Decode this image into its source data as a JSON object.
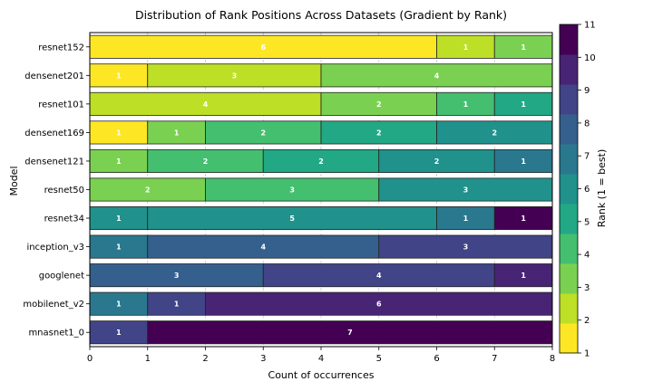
{
  "chart_data": {
    "type": "bar",
    "orientation": "horizontal",
    "stacked": true,
    "title": "Distribution of Rank Positions Across Datasets (Gradient by Rank)",
    "xlabel": "Count of occurrences",
    "ylabel": "Model",
    "xlim": [
      0,
      8
    ],
    "xticks": [
      0,
      1,
      2,
      3,
      4,
      5,
      6,
      7,
      8
    ],
    "grid_x": true,
    "colorbar": {
      "label": "Rank (1 = best)",
      "min": 1,
      "max": 11,
      "ticks": [
        1,
        2,
        3,
        4,
        5,
        6,
        7,
        8,
        9,
        10,
        11
      ],
      "colormap": "viridis_r",
      "levels": 11
    },
    "categories": [
      "resnet152",
      "densenet201",
      "resnet101",
      "densenet169",
      "densenet121",
      "resnet50",
      "resnet34",
      "inception_v3",
      "googlenet",
      "mobilenet_v2",
      "mnasnet1_0"
    ],
    "rows": [
      {
        "model": "resnet152",
        "segments": [
          {
            "rank": 1,
            "count": 6
          },
          {
            "rank": 2,
            "count": 1
          },
          {
            "rank": 3,
            "count": 1
          }
        ]
      },
      {
        "model": "densenet201",
        "segments": [
          {
            "rank": 1,
            "count": 1
          },
          {
            "rank": 2,
            "count": 3
          },
          {
            "rank": 3,
            "count": 4
          }
        ]
      },
      {
        "model": "resnet101",
        "segments": [
          {
            "rank": 2,
            "count": 4
          },
          {
            "rank": 3,
            "count": 2
          },
          {
            "rank": 4,
            "count": 1
          },
          {
            "rank": 5,
            "count": 1
          }
        ]
      },
      {
        "model": "densenet169",
        "segments": [
          {
            "rank": 1,
            "count": 1
          },
          {
            "rank": 3,
            "count": 1
          },
          {
            "rank": 4,
            "count": 2
          },
          {
            "rank": 5,
            "count": 2
          },
          {
            "rank": 6,
            "count": 2
          }
        ]
      },
      {
        "model": "densenet121",
        "segments": [
          {
            "rank": 3,
            "count": 1
          },
          {
            "rank": 4,
            "count": 2
          },
          {
            "rank": 5,
            "count": 2
          },
          {
            "rank": 6,
            "count": 2
          },
          {
            "rank": 7,
            "count": 1
          }
        ]
      },
      {
        "model": "resnet50",
        "segments": [
          {
            "rank": 3,
            "count": 2
          },
          {
            "rank": 4,
            "count": 3
          },
          {
            "rank": 6,
            "count": 3
          }
        ]
      },
      {
        "model": "resnet34",
        "segments": [
          {
            "rank": 6,
            "count": 1
          },
          {
            "rank": 6,
            "count": 5
          },
          {
            "rank": 7,
            "count": 1
          },
          {
            "rank": 11,
            "count": 1
          }
        ]
      },
      {
        "model": "inception_v3",
        "segments": [
          {
            "rank": 7,
            "count": 1
          },
          {
            "rank": 8,
            "count": 4
          },
          {
            "rank": 9,
            "count": 3
          }
        ]
      },
      {
        "model": "googlenet",
        "segments": [
          {
            "rank": 8,
            "count": 3
          },
          {
            "rank": 9,
            "count": 4
          },
          {
            "rank": 10,
            "count": 1
          }
        ]
      },
      {
        "model": "mobilenet_v2",
        "segments": [
          {
            "rank": 7,
            "count": 1
          },
          {
            "rank": 9,
            "count": 1
          },
          {
            "rank": 10,
            "count": 6
          }
        ]
      },
      {
        "model": "mnasnet1_0",
        "segments": [
          {
            "rank": 9,
            "count": 1
          },
          {
            "rank": 11,
            "count": 7
          }
        ]
      }
    ]
  }
}
